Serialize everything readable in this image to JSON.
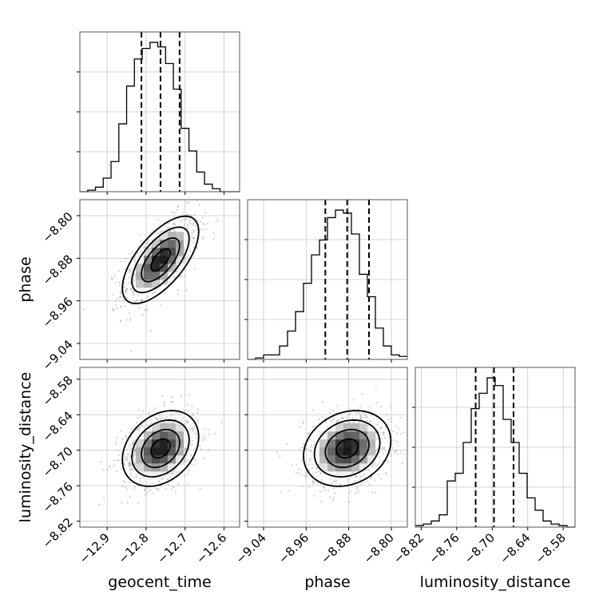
{
  "chart_data": {
    "type": "corner",
    "parameters": [
      {
        "name": "geocent_time",
        "label": "geocent_time",
        "ticks": [
          -12.9,
          -12.8,
          -12.7,
          -12.6
        ],
        "tick_labels": [
          "−12.9",
          "−12.8",
          "−12.7",
          "−12.6"
        ],
        "range": [
          -12.97,
          -12.56
        ],
        "quantiles": [
          -12.812,
          -12.763,
          -12.714
        ],
        "histogram": {
          "bin_edges": [
            -12.97,
            -12.95,
            -12.93,
            -12.91,
            -12.89,
            -12.87,
            -12.85,
            -12.83,
            -12.81,
            -12.79,
            -12.77,
            -12.75,
            -12.73,
            -12.71,
            -12.69,
            -12.67,
            -12.65,
            -12.63,
            -12.61,
            -12.59,
            -12.57,
            -12.56
          ],
          "counts": [
            0,
            1,
            3,
            9,
            20,
            45,
            70,
            88,
            95,
            99,
            96,
            85,
            68,
            42,
            27,
            13,
            5,
            2,
            0,
            0,
            0
          ]
        }
      },
      {
        "name": "phase",
        "label": "phase",
        "ticks": [
          -9.04,
          -8.96,
          -8.88,
          -8.8
        ],
        "tick_labels": [
          "−9.04",
          "−8.96",
          "−8.88",
          "−8.80"
        ],
        "range": [
          -9.07,
          -8.77
        ],
        "quantiles": [
          -8.924,
          -8.883,
          -8.842
        ],
        "histogram": {
          "bin_edges": [
            -9.07,
            -9.055,
            -9.04,
            -9.025,
            -9.01,
            -8.995,
            -8.98,
            -8.965,
            -8.95,
            -8.935,
            -8.92,
            -8.905,
            -8.89,
            -8.875,
            -8.86,
            -8.845,
            -8.83,
            -8.815,
            -8.8,
            -8.785,
            -8.77
          ],
          "counts": [
            0,
            1,
            3,
            3,
            9,
            19,
            32,
            51,
            70,
            80,
            95,
            100,
            98,
            84,
            57,
            42,
            21,
            9,
            3,
            2
          ]
        }
      },
      {
        "name": "luminosity_distance",
        "label": "luminosity_distance",
        "ticks": [
          -8.82,
          -8.76,
          -8.7,
          -8.64,
          -8.58
        ],
        "tick_labels": [
          "−8.82",
          "−8.76",
          "−8.70",
          "−8.64",
          "−8.58"
        ],
        "range": [
          -8.83,
          -8.56
        ],
        "quantiles": [
          -8.728,
          -8.697,
          -8.664
        ],
        "histogram": {
          "bin_edges": [
            -8.83,
            -8.8165,
            -8.803,
            -8.7895,
            -8.776,
            -8.7625,
            -8.749,
            -8.7355,
            -8.722,
            -8.7085,
            -8.695,
            -8.6815,
            -8.668,
            -8.6545,
            -8.641,
            -8.6275,
            -8.614,
            -8.6005,
            -8.587,
            -8.5735,
            -8.56
          ],
          "counts": [
            1,
            2,
            4,
            8,
            30,
            35,
            55,
            77,
            87,
            97,
            92,
            70,
            55,
            35,
            19,
            11,
            4,
            2,
            1,
            0
          ]
        }
      }
    ],
    "pairs": [
      {
        "x": "geocent_time",
        "y": "phase",
        "mean": [
          -12.763,
          -8.883
        ],
        "std": [
          0.049,
          0.041
        ],
        "correlation": 0.65
      },
      {
        "x": "geocent_time",
        "y": "luminosity_distance",
        "mean": [
          -12.763,
          -8.697
        ],
        "std": [
          0.049,
          0.032
        ],
        "correlation": 0.3
      },
      {
        "x": "phase",
        "y": "luminosity_distance",
        "mean": [
          -8.883,
          -8.697
        ],
        "std": [
          0.041,
          0.032
        ],
        "correlation": 0.2
      }
    ],
    "contour_levels_sigma": [
      0.5,
      1.0,
      1.5,
      2.0
    ],
    "grid": true
  }
}
